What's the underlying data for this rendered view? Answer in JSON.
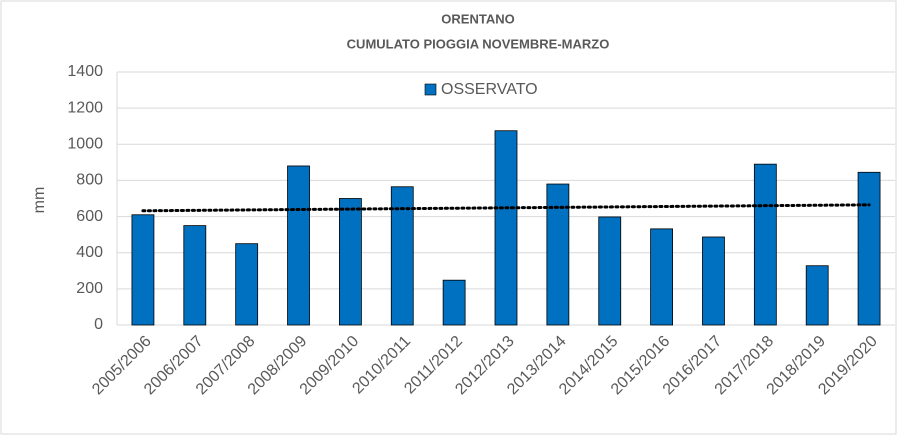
{
  "chart_data": {
    "type": "bar",
    "title": "ORENTANO",
    "subtitle": "CUMULATO PIOGGIA NOVEMBRE-MARZO",
    "y_label": "mm",
    "categories": [
      "2005/2006",
      "2006/2007",
      "2007/2008",
      "2008/2009",
      "2009/2010",
      "2010/2011",
      "2011/2012",
      "2012/2013",
      "2013/2014",
      "2014/2015",
      "2015/2016",
      "2016/2017",
      "2017/2018",
      "2018/2019",
      "2019/2020"
    ],
    "series": [
      {
        "name": "OSSERVATO",
        "color": "#0070c0",
        "values": [
          610,
          550,
          450,
          880,
          700,
          765,
          248,
          1075,
          780,
          598,
          532,
          487,
          890,
          328,
          845
        ]
      }
    ],
    "trend": [
      632,
      665
    ],
    "ylim": [
      0,
      1400
    ],
    "yticks": [
      0,
      200,
      400,
      600,
      800,
      1000,
      1200,
      1400
    ],
    "grid": true
  }
}
